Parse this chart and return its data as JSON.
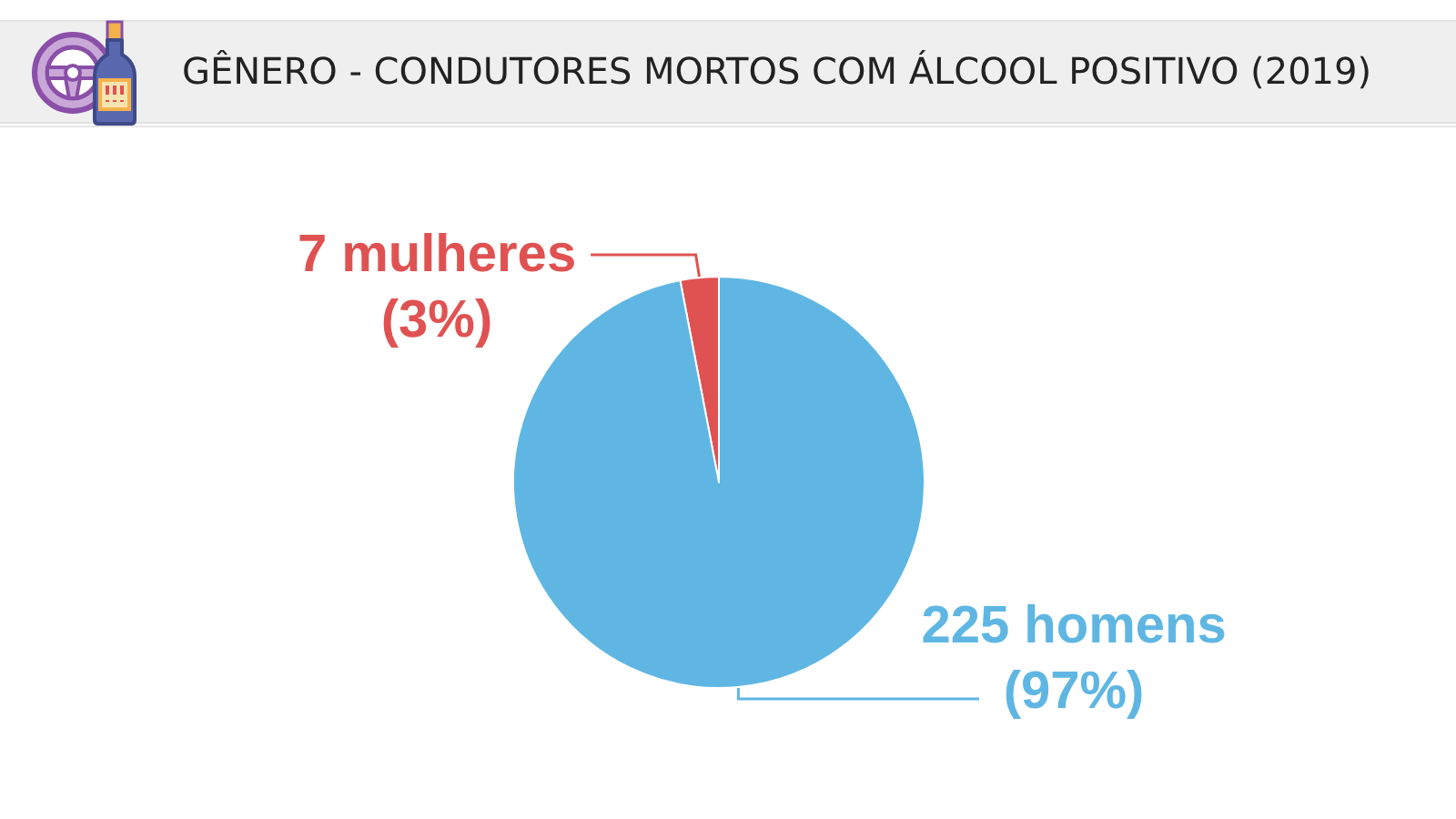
{
  "chart_data": {
    "type": "pie",
    "title": "GÊNERO - CONDUTORES MORTOS COM ÁLCOOL POSITIVO (2019)",
    "categories": [
      "mulheres",
      "homens"
    ],
    "values": [
      7,
      225
    ],
    "colors": [
      "#e05252",
      "#5fb6e3"
    ],
    "data_labels": true,
    "annotations": [
      "(3%)",
      "(97%)"
    ]
  }
}
